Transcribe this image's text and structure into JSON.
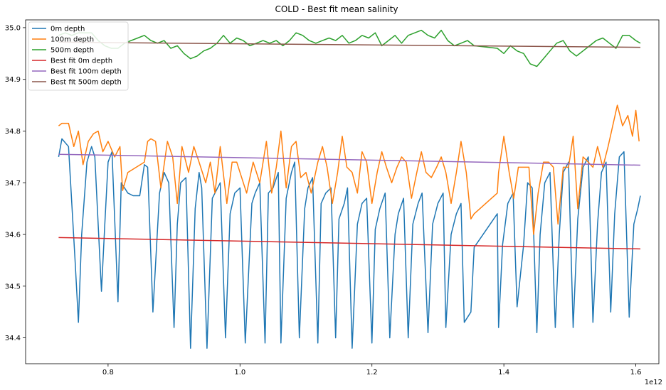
{
  "chart_data": {
    "type": "line",
    "title": "COLD - Best fit mean salinity",
    "xlabel": "",
    "ylabel": "",
    "x_offset_label": "1e12",
    "xlim": [
      0.675,
      1.635
    ],
    "ylim": [
      34.35,
      35.015
    ],
    "x_ticks": [
      0.8,
      1.0,
      1.2,
      1.4,
      1.6
    ],
    "x_tick_labels": [
      "0.8",
      "1.0",
      "1.2",
      "1.4",
      "1.6"
    ],
    "y_ticks": [
      34.4,
      34.5,
      34.6,
      34.7,
      34.8,
      34.9,
      35.0
    ],
    "y_tick_labels": [
      "34.4",
      "34.5",
      "34.6",
      "34.7",
      "34.8",
      "34.9",
      "35.0"
    ],
    "grid": false,
    "legend_position": "top-left",
    "series": [
      {
        "name": "0m depth",
        "color": "#1f77b4",
        "x": [
          0.725,
          0.73,
          0.74,
          0.75,
          0.755,
          0.76,
          0.768,
          0.775,
          0.78,
          0.79,
          0.795,
          0.8,
          0.806,
          0.815,
          0.82,
          0.83,
          0.838,
          0.848,
          0.855,
          0.86,
          0.868,
          0.878,
          0.885,
          0.892,
          0.9,
          0.905,
          0.91,
          0.918,
          0.925,
          0.932,
          0.938,
          0.942,
          0.95,
          0.958,
          0.962,
          0.97,
          0.978,
          0.985,
          0.992,
          1.0,
          1.008,
          1.018,
          1.023,
          1.03,
          1.038,
          1.043,
          1.05,
          1.058,
          1.062,
          1.07,
          1.078,
          1.083,
          1.09,
          1.098,
          1.103,
          1.11,
          1.118,
          1.123,
          1.13,
          1.138,
          1.145,
          1.15,
          1.158,
          1.163,
          1.17,
          1.178,
          1.185,
          1.192,
          1.2,
          1.205,
          1.212,
          1.22,
          1.227,
          1.235,
          1.24,
          1.248,
          1.255,
          1.262,
          1.27,
          1.276,
          1.285,
          1.292,
          1.3,
          1.308,
          1.312,
          1.32,
          1.328,
          1.335,
          1.34,
          1.35,
          1.355,
          1.39,
          1.392,
          1.398,
          1.406,
          1.414,
          1.42,
          1.43,
          1.436,
          1.443,
          1.45,
          1.455,
          1.462,
          1.47,
          1.478,
          1.484,
          1.49,
          1.498,
          1.505,
          1.512,
          1.52,
          1.528,
          1.535,
          1.542,
          1.548,
          1.555,
          1.562,
          1.568,
          1.575,
          1.582,
          1.59,
          1.597,
          1.603,
          1.607
        ],
        "values": [
          34.75,
          34.785,
          34.77,
          34.55,
          34.43,
          34.6,
          34.74,
          34.77,
          34.75,
          34.49,
          34.62,
          34.74,
          34.76,
          34.47,
          34.7,
          34.68,
          34.675,
          34.675,
          34.735,
          34.73,
          34.45,
          34.68,
          34.72,
          34.7,
          34.42,
          34.62,
          34.7,
          34.71,
          34.38,
          34.65,
          34.72,
          34.69,
          34.38,
          34.67,
          34.68,
          34.7,
          34.4,
          34.64,
          34.68,
          34.69,
          34.39,
          34.66,
          34.68,
          34.7,
          34.39,
          34.68,
          34.69,
          34.72,
          34.39,
          34.67,
          34.72,
          34.74,
          34.4,
          34.65,
          34.69,
          34.71,
          34.39,
          34.66,
          34.68,
          34.69,
          34.4,
          34.63,
          34.66,
          34.69,
          34.38,
          34.62,
          34.66,
          34.67,
          34.39,
          34.61,
          34.65,
          34.68,
          34.4,
          34.6,
          34.64,
          34.67,
          34.4,
          34.62,
          34.66,
          34.68,
          34.41,
          34.62,
          34.66,
          34.68,
          34.42,
          34.6,
          34.64,
          34.66,
          34.43,
          34.45,
          34.575,
          34.64,
          34.42,
          34.58,
          34.66,
          34.68,
          34.46,
          34.58,
          34.7,
          34.69,
          34.41,
          34.6,
          34.7,
          34.72,
          34.42,
          34.6,
          34.72,
          34.74,
          34.42,
          34.63,
          34.73,
          34.75,
          34.43,
          34.62,
          34.72,
          34.74,
          34.45,
          34.64,
          34.75,
          34.76,
          34.44,
          34.62,
          34.65,
          34.675
        ]
      },
      {
        "name": "100m depth",
        "color": "#ff7f0e",
        "x": [
          0.725,
          0.73,
          0.74,
          0.748,
          0.755,
          0.762,
          0.77,
          0.778,
          0.785,
          0.792,
          0.8,
          0.81,
          0.818,
          0.822,
          0.83,
          0.855,
          0.86,
          0.865,
          0.872,
          0.88,
          0.89,
          0.898,
          0.905,
          0.912,
          0.922,
          0.93,
          0.938,
          0.948,
          0.955,
          0.962,
          0.97,
          0.98,
          0.988,
          0.995,
          1.0,
          1.01,
          1.02,
          1.03,
          1.04,
          1.048,
          1.055,
          1.062,
          1.07,
          1.078,
          1.085,
          1.092,
          1.1,
          1.108,
          1.118,
          1.125,
          1.132,
          1.14,
          1.148,
          1.155,
          1.162,
          1.17,
          1.178,
          1.185,
          1.192,
          1.2,
          1.208,
          1.215,
          1.222,
          1.23,
          1.238,
          1.245,
          1.252,
          1.26,
          1.268,
          1.275,
          1.282,
          1.29,
          1.298,
          1.305,
          1.312,
          1.32,
          1.328,
          1.335,
          1.343,
          1.35,
          1.355,
          1.39,
          1.392,
          1.4,
          1.408,
          1.415,
          1.422,
          1.43,
          1.438,
          1.445,
          1.452,
          1.46,
          1.468,
          1.475,
          1.482,
          1.49,
          1.498,
          1.505,
          1.512,
          1.52,
          1.528,
          1.535,
          1.542,
          1.55,
          1.558,
          1.565,
          1.572,
          1.58,
          1.588,
          1.595,
          1.6,
          1.605
        ],
        "values": [
          34.81,
          34.815,
          34.815,
          34.77,
          34.8,
          34.735,
          34.78,
          34.795,
          34.8,
          34.76,
          34.78,
          34.75,
          34.77,
          34.685,
          34.72,
          34.74,
          34.78,
          34.785,
          34.78,
          34.69,
          34.78,
          34.75,
          34.66,
          34.77,
          34.72,
          34.77,
          34.74,
          34.7,
          34.74,
          34.68,
          34.77,
          34.66,
          34.74,
          34.74,
          34.72,
          34.68,
          34.74,
          34.7,
          34.78,
          34.68,
          34.73,
          34.8,
          34.69,
          34.77,
          34.78,
          34.71,
          34.72,
          34.68,
          34.74,
          34.77,
          34.73,
          34.66,
          34.72,
          34.79,
          34.73,
          34.72,
          34.68,
          34.76,
          34.74,
          34.66,
          34.72,
          34.76,
          34.73,
          34.7,
          34.73,
          34.75,
          34.74,
          34.67,
          34.72,
          34.76,
          34.72,
          34.71,
          34.73,
          34.75,
          34.72,
          34.66,
          34.72,
          34.78,
          34.72,
          34.63,
          34.64,
          34.68,
          34.72,
          34.79,
          34.72,
          34.67,
          34.73,
          34.73,
          34.73,
          34.6,
          34.68,
          34.74,
          34.74,
          34.73,
          34.62,
          34.73,
          34.73,
          34.79,
          34.65,
          34.75,
          34.74,
          34.73,
          34.77,
          34.73,
          34.77,
          34.81,
          34.85,
          34.81,
          34.83,
          34.79,
          34.84,
          34.78
        ]
      },
      {
        "name": "500m depth",
        "color": "#2ca02c",
        "x": [
          0.725,
          0.735,
          0.745,
          0.755,
          0.765,
          0.775,
          0.785,
          0.795,
          0.805,
          0.815,
          0.825,
          0.835,
          0.845,
          0.855,
          0.865,
          0.875,
          0.885,
          0.895,
          0.905,
          0.915,
          0.925,
          0.935,
          0.945,
          0.955,
          0.965,
          0.975,
          0.985,
          0.995,
          1.005,
          1.015,
          1.025,
          1.035,
          1.045,
          1.055,
          1.065,
          1.075,
          1.085,
          1.095,
          1.105,
          1.115,
          1.125,
          1.135,
          1.145,
          1.155,
          1.165,
          1.175,
          1.185,
          1.195,
          1.205,
          1.215,
          1.225,
          1.235,
          1.245,
          1.255,
          1.265,
          1.275,
          1.285,
          1.295,
          1.305,
          1.315,
          1.325,
          1.335,
          1.345,
          1.355,
          1.39,
          1.4,
          1.41,
          1.42,
          1.43,
          1.44,
          1.45,
          1.46,
          1.47,
          1.48,
          1.49,
          1.5,
          1.51,
          1.52,
          1.53,
          1.54,
          1.55,
          1.56,
          1.57,
          1.58,
          1.59,
          1.6,
          1.607
        ],
        "values": [
          34.985,
          34.99,
          34.985,
          34.99,
          34.99,
          34.99,
          34.975,
          34.965,
          34.96,
          34.96,
          34.97,
          34.975,
          34.98,
          34.985,
          34.975,
          34.97,
          34.975,
          34.96,
          34.965,
          34.95,
          34.94,
          34.945,
          34.955,
          34.96,
          34.97,
          34.985,
          34.97,
          34.98,
          34.975,
          34.965,
          34.97,
          34.975,
          34.97,
          34.975,
          34.965,
          34.975,
          34.99,
          34.985,
          34.975,
          34.97,
          34.975,
          34.98,
          34.975,
          34.985,
          34.97,
          34.975,
          34.985,
          34.98,
          34.99,
          34.965,
          34.975,
          34.985,
          34.97,
          34.985,
          34.99,
          34.995,
          34.985,
          34.98,
          34.995,
          34.975,
          34.965,
          34.97,
          34.975,
          34.965,
          34.96,
          34.95,
          34.965,
          34.955,
          34.95,
          34.93,
          34.925,
          34.94,
          34.955,
          34.97,
          34.975,
          34.955,
          34.945,
          34.955,
          34.965,
          34.975,
          34.98,
          34.97,
          34.96,
          34.985,
          34.985,
          34.975,
          34.97
        ]
      },
      {
        "name": "Best fit 0m depth",
        "color": "#d62728",
        "x": [
          0.725,
          1.607
        ],
        "values": [
          34.594,
          34.572
        ]
      },
      {
        "name": "Best fit 100m depth",
        "color": "#9467bd",
        "x": [
          0.725,
          1.607
        ],
        "values": [
          34.755,
          34.734
        ]
      },
      {
        "name": "Best fit 500m depth",
        "color": "#8c564b",
        "x": [
          0.725,
          1.607
        ],
        "values": [
          34.972,
          34.962
        ]
      }
    ]
  }
}
